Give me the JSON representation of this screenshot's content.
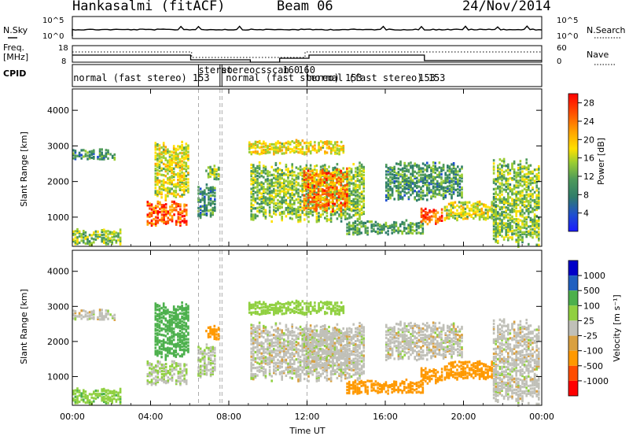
{
  "header": {
    "station": "Hankasalmi (fitACF)",
    "beam": "Beam 06",
    "date": "24/Nov/2014"
  },
  "panels": {
    "nsky_label": "N.Sky",
    "nsearch_label": "N.Search",
    "freq_label_1": "Freq.",
    "freq_label_2": "[MHz]",
    "nave_label": "Nave",
    "cpid_label": "CPID",
    "nsky_ticks": [
      "10^5",
      "10^0"
    ],
    "nsearch_ticks": [
      "10^5",
      "10^0"
    ],
    "freq_ticks": [
      "18",
      "8"
    ],
    "nave_ticks": [
      "60",
      "0"
    ]
  },
  "cpid_labels": [
    {
      "text": "normal (fast stereo)  153",
      "hour": 0.05
    },
    {
      "text": "stereo",
      "hour": 6.45
    },
    {
      "text": "stereocsscan",
      "hour": 7.6
    },
    {
      "text": "160",
      "hour": 10.75
    },
    {
      "text": "160",
      "hour": 11.55
    },
    {
      "text": "normal (fast stereo)  153",
      "hour": 7.85
    },
    {
      "text": "normal (fast stereo)  153",
      "hour": 12.1
    },
    {
      "text": "153",
      "hour": 17.7
    }
  ],
  "colors": {
    "power": [
      "#1a1aff",
      "#1f4fd0",
      "#2f7d6a",
      "#4f9b5a",
      "#9acd32",
      "#ffe000",
      "#ffa500",
      "#ff5000",
      "#ff0000"
    ],
    "velocity": [
      "#ff0000",
      "#ff4d00",
      "#ff9900",
      "#d9a040",
      "#c0c0b8",
      "#90d040",
      "#4cb04c",
      "#2060c0",
      "#0000c8"
    ]
  },
  "chart_data": [
    {
      "type": "heatmap",
      "name": "power",
      "xlabel": "",
      "ylabel": "Slant Range [km]",
      "x_ticks": [
        "",
        "",
        "",
        "",
        "",
        "",
        ""
      ],
      "y_ticks": [
        "1000",
        "2000",
        "3000",
        "4000"
      ],
      "xlim_hours": [
        0,
        24
      ],
      "ylim_km": [
        180,
        4600
      ],
      "colorbar": {
        "label": "Power [dB]",
        "ticks": [
          "4",
          "8",
          "12",
          "16",
          "20",
          "24",
          "28"
        ],
        "range": [
          0,
          30
        ]
      }
    },
    {
      "type": "heatmap",
      "name": "velocity",
      "xlabel": "Time UT",
      "ylabel": "Slant Range [km]",
      "x_ticks": [
        "00:00",
        "04:00",
        "08:00",
        "12:00",
        "16:00",
        "20:00",
        "00:00"
      ],
      "y_ticks": [
        "1000",
        "2000",
        "3000",
        "4000"
      ],
      "xlim_hours": [
        0,
        24
      ],
      "ylim_km": [
        180,
        4600
      ],
      "colorbar": {
        "label": "Velocity [m s⁻¹]",
        "ticks": [
          "1000",
          "500",
          "100",
          "25",
          "-25",
          "-100",
          "-500",
          "-1000"
        ]
      }
    }
  ],
  "echo_regions": [
    {
      "hours": [
        0.0,
        1.9
      ],
      "km": [
        2650,
        2950
      ],
      "power": 10,
      "velocity": 0
    },
    {
      "hours": [
        0.0,
        2.6
      ],
      "km": [
        250,
        700
      ],
      "power": 14,
      "velocity": 80
    },
    {
      "hours": [
        1.9,
        2.3
      ],
      "km": [
        2650,
        2850
      ],
      "power": 10,
      "velocity": 0
    },
    {
      "hours": [
        3.8,
        5.9
      ],
      "km": [
        800,
        1500
      ],
      "power": 26,
      "velocity": 20
    },
    {
      "hours": [
        4.2,
        6.0
      ],
      "km": [
        1500,
        3200
      ],
      "power": 17,
      "velocity": 150
    },
    {
      "hours": [
        6.4,
        7.4
      ],
      "km": [
        1000,
        2000
      ],
      "power": 9,
      "velocity": 10
    },
    {
      "hours": [
        6.8,
        7.6
      ],
      "km": [
        2100,
        2500
      ],
      "power": 14,
      "velocity": -250
    },
    {
      "hours": [
        9.1,
        15.0
      ],
      "km": [
        900,
        2600
      ],
      "power": 14,
      "velocity": 0
    },
    {
      "hours": [
        11.8,
        14.2
      ],
      "km": [
        1200,
        2400
      ],
      "power": 24,
      "velocity": 0
    },
    {
      "hours": [
        9.0,
        14.0
      ],
      "km": [
        2800,
        3200
      ],
      "power": 18,
      "velocity": 60
    },
    {
      "hours": [
        14.0,
        18.0
      ],
      "km": [
        550,
        950
      ],
      "power": 11,
      "velocity": -300
    },
    {
      "hours": [
        16.0,
        20.0
      ],
      "km": [
        1500,
        2600
      ],
      "power": 10,
      "velocity": 0
    },
    {
      "hours": [
        17.8,
        19.0
      ],
      "km": [
        800,
        1300
      ],
      "power": 26,
      "velocity": -150
    },
    {
      "hours": [
        19.0,
        21.8
      ],
      "km": [
        950,
        1500
      ],
      "power": 17,
      "velocity": -300
    },
    {
      "hours": [
        21.5,
        24.0
      ],
      "km": [
        200,
        2700
      ],
      "power": 14,
      "velocity": 0
    }
  ]
}
